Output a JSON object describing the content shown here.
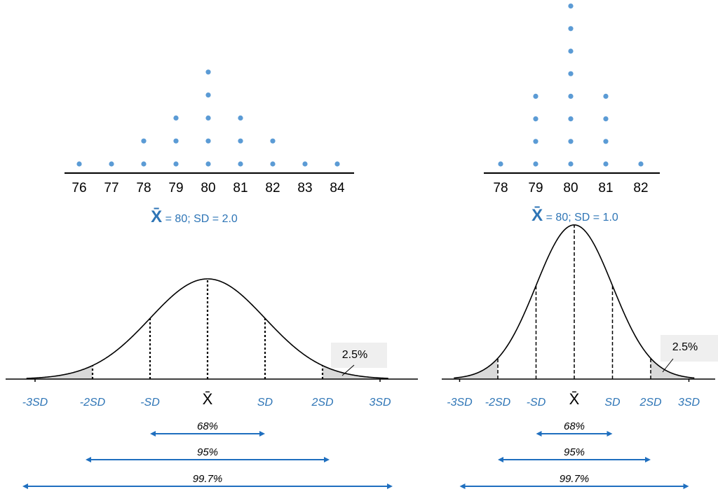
{
  "panels": [
    {
      "id": "left",
      "dot_plot": {
        "ticks": [
          "76",
          "77",
          "78",
          "79",
          "80",
          "81",
          "82",
          "83",
          "84"
        ],
        "counts": [
          1,
          1,
          2,
          3,
          5,
          3,
          2,
          1,
          1
        ]
      },
      "stats": {
        "mean_symbol": "X̄",
        "rest": " = 80; SD = 2.0"
      },
      "curve": {
        "sd_labels": [
          "-3SD",
          "-2SD",
          "-SD",
          "X̄",
          "SD",
          "2SD",
          "3SD"
        ],
        "tail_label": "2.5%"
      },
      "ranges": [
        {
          "label": "68%",
          "sd_span": 1
        },
        {
          "label": "95%",
          "sd_span": 2
        },
        {
          "label": "99.7%",
          "sd_span": 3
        }
      ]
    },
    {
      "id": "right",
      "dot_plot": {
        "ticks": [
          "78",
          "79",
          "80",
          "81",
          "82"
        ],
        "counts": [
          1,
          4,
          8,
          4,
          1
        ]
      },
      "stats": {
        "mean_symbol": "X̄",
        "rest": " = 80; SD = 1.0"
      },
      "curve": {
        "sd_labels": [
          "-3SD",
          "-2SD",
          "-SD",
          "X̄",
          "SD",
          "2SD",
          "3SD"
        ],
        "tail_label": "2.5%"
      },
      "ranges": [
        {
          "label": "68%",
          "sd_span": 1
        },
        {
          "label": "95%",
          "sd_span": 2
        },
        {
          "label": "99.7%",
          "sd_span": 3
        }
      ]
    }
  ],
  "colors": {
    "dot": "#5b9bd5",
    "accent": "#2e75b6",
    "arrow": "#1f6fbf",
    "text": "#000000",
    "shade": "#d9d9d9",
    "callout": "#efefef"
  }
}
